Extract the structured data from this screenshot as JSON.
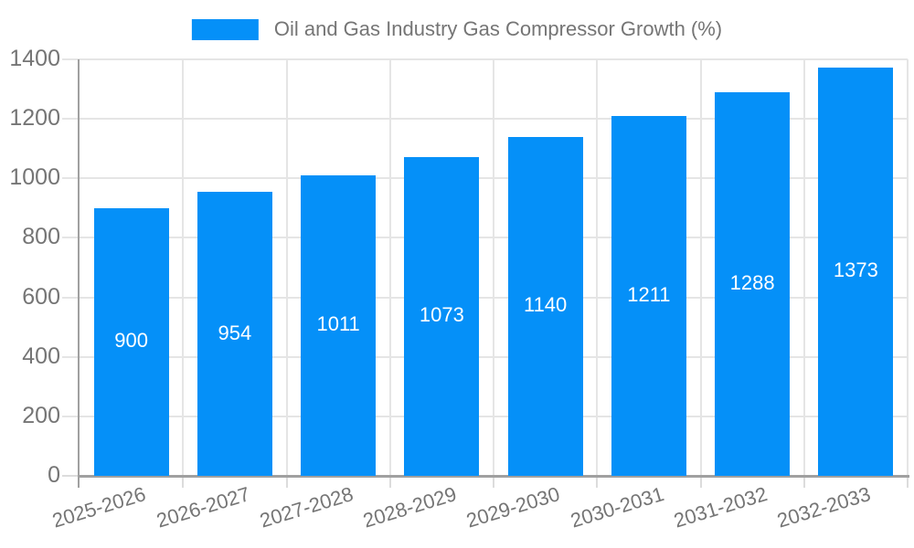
{
  "legend": {
    "position": "top-center"
  },
  "chart_data": {
    "type": "bar",
    "title": "Oil and Gas Industry Gas Compressor Growth (%)",
    "categories": [
      "2025-2026",
      "2026-2027",
      "2027-2028",
      "2028-2029",
      "2029-2030",
      "2030-2031",
      "2031-2032",
      "2032-2033"
    ],
    "values": [
      900,
      954,
      1011,
      1073,
      1140,
      1211,
      1288,
      1373
    ],
    "bar_value_labels": [
      "900",
      "954",
      "1011",
      "1073",
      "1140",
      "1211",
      "1288",
      "1373"
    ],
    "xlabel": "",
    "ylabel": "",
    "ylim": [
      0,
      1400
    ],
    "ytick_interval": 200,
    "ytick_labels": [
      "0",
      "200",
      "400",
      "600",
      "800",
      "1000",
      "1200",
      "1400"
    ],
    "grid": true,
    "legend_entries": [
      "Oil and Gas Industry Gas Compressor Growth (%)"
    ],
    "legend_position": "top-center",
    "colors": {
      "bar": "#0590f8",
      "bar_label": "#ffffff",
      "axis_text": "#757575",
      "grid_line": "#e5e5e5",
      "tick_line": "#dcdcdc",
      "axis_line": "#a0a0a0",
      "background": "#ffffff"
    }
  }
}
